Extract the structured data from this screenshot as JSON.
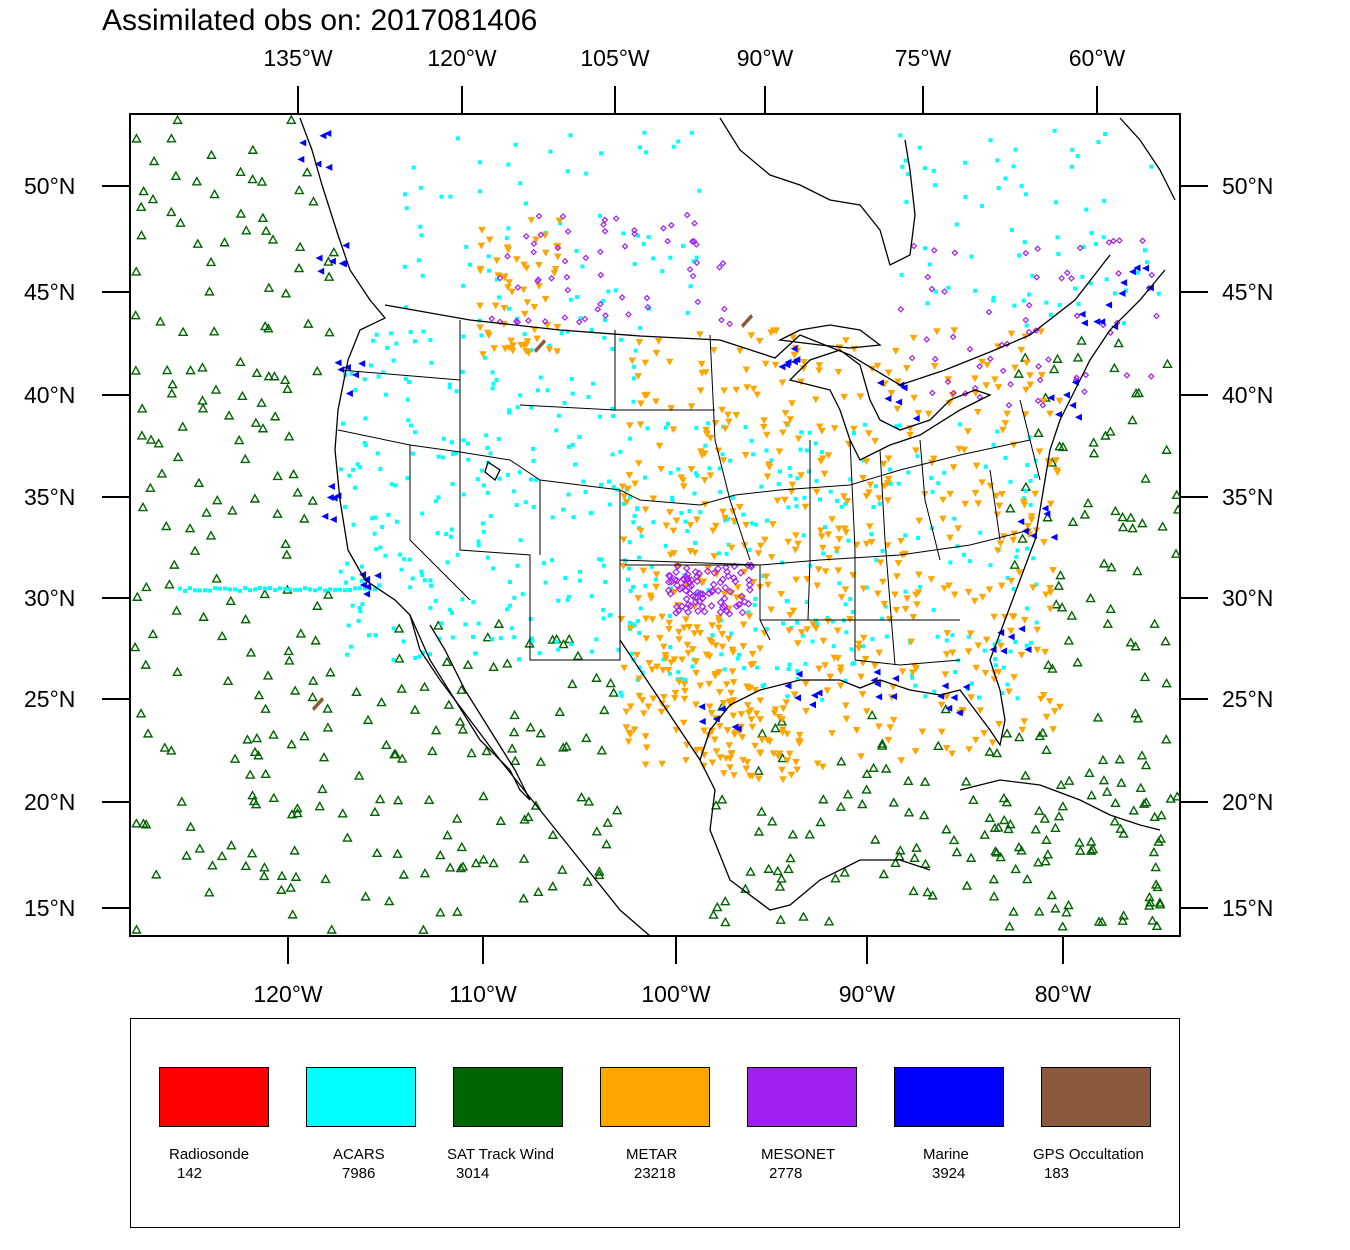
{
  "title": "Assimilated obs on: 2017081406",
  "top_axis_labels": [
    "135°W",
    "120°W",
    "105°W",
    "90°W",
    "75°W",
    "60°W"
  ],
  "bottom_axis_labels": [
    "120°W",
    "110°W",
    "100°W",
    "90°W",
    "80°W"
  ],
  "lat_labels": [
    "50°N",
    "45°N",
    "40°N",
    "35°N",
    "30°N",
    "25°N",
    "20°N",
    "15°N"
  ],
  "legend": [
    {
      "name": "Radiosonde",
      "count": "142",
      "color": "#ff0000"
    },
    {
      "name": "ACARS",
      "count": "7986",
      "color": "#00ffff"
    },
    {
      "name": "SAT Track Wind",
      "count": "3014",
      "color": "#006400"
    },
    {
      "name": "METAR",
      "count": "23218",
      "color": "#ffa500"
    },
    {
      "name": "MESONET",
      "count": "2778",
      "color": "#a020f0"
    },
    {
      "name": "Marine",
      "count": "3924",
      "color": "#0000ff"
    },
    {
      "name": "GPS Occultation",
      "count": "183",
      "color": "#8b5a3c"
    }
  ]
}
